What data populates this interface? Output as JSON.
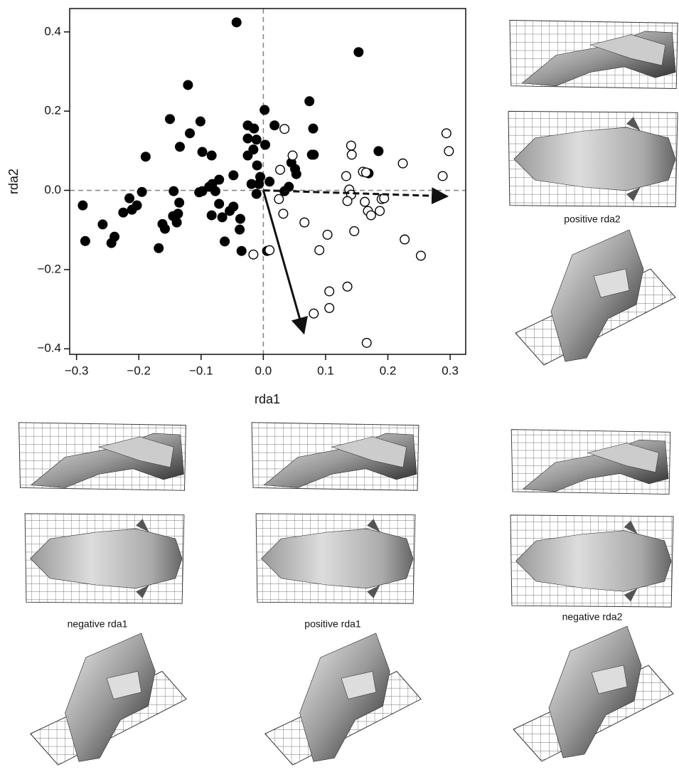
{
  "chart_data": {
    "type": "scatter",
    "xlabel": "rda1",
    "ylabel": "rda2",
    "xlim": [
      -0.311,
      0.325
    ],
    "ylim": [
      -0.414,
      0.459
    ],
    "xticks": [
      {
        "value": -0.3,
        "label": "−0.3"
      },
      {
        "value": -0.2,
        "label": "−0.2"
      },
      {
        "value": -0.1,
        "label": "−0.1"
      },
      {
        "value": 0,
        "label": "0.0"
      },
      0.1,
      0.2,
      0.3
    ],
    "yticks": [
      {
        "value": -0.4,
        "label": "−0.4"
      },
      {
        "value": -0.2,
        "label": "−0.2"
      },
      {
        "value": 0,
        "label": "0.0"
      },
      0.2,
      0.4
    ],
    "zero_lines": true,
    "series": [
      {
        "color": "#000000",
        "marker": "filled",
        "x": [
          -0.043,
          0.153,
          -0.121,
          -0.15,
          -0.101,
          0.002,
          -0.025,
          -0.015,
          0.018,
          0.074,
          0.08,
          -0.118,
          -0.134,
          -0.189,
          -0.098,
          -0.083,
          -0.025,
          -0.011,
          -0.016,
          0.003,
          -0.025,
          -0.01,
          0.078,
          0.081,
          0.185,
          -0.048,
          -0.071,
          -0.082,
          -0.087,
          -0.098,
          -0.103,
          -0.077,
          -0.019,
          -0.007,
          -0.005,
          0.01,
          0.045,
          0.051,
          0.053,
          0.034,
          0.041,
          -0.011,
          0.169,
          -0.144,
          -0.195,
          -0.215,
          -0.203,
          -0.211,
          -0.225,
          -0.29,
          -0.258,
          -0.286,
          -0.239,
          -0.244,
          -0.162,
          -0.158,
          -0.145,
          -0.137,
          -0.139,
          -0.135,
          -0.168,
          -0.083,
          -0.071,
          -0.054,
          -0.066,
          -0.048,
          -0.037,
          -0.038,
          -0.062,
          -0.035,
          0.006
        ],
        "values": [
          0.424,
          0.349,
          0.266,
          0.18,
          0.174,
          0.203,
          0.164,
          0.156,
          0.164,
          0.225,
          0.156,
          0.144,
          0.11,
          0.085,
          0.097,
          0.088,
          0.131,
          0.128,
          0.103,
          0.115,
          0.088,
          0.063,
          0.09,
          0.09,
          0.099,
          0.038,
          0.027,
          0.016,
          0.009,
          -0.002,
          -0.005,
          -0.002,
          0.016,
          0.016,
          0.034,
          0.022,
          0.07,
          0.054,
          0.041,
          -0.002,
          0.009,
          -0.009,
          0.043,
          -0.002,
          -0.004,
          -0.02,
          -0.038,
          -0.049,
          -0.056,
          -0.038,
          -0.086,
          -0.128,
          -0.117,
          -0.133,
          -0.085,
          -0.097,
          -0.065,
          -0.059,
          -0.081,
          -0.031,
          -0.146,
          -0.063,
          -0.034,
          -0.052,
          -0.068,
          -0.041,
          -0.072,
          -0.099,
          -0.129,
          -0.153,
          -0.153
        ]
      },
      {
        "color": "#000000",
        "marker": "open",
        "x": [
          0.034,
          0.047,
          0.027,
          0.025,
          0.032,
          0.066,
          0.103,
          0.09,
          0.081,
          0.106,
          0.106,
          0.135,
          0.166,
          0.01,
          -0.016,
          0.141,
          0.142,
          0.133,
          0.16,
          0.165,
          0.138,
          0.141,
          0.135,
          0.163,
          0.168,
          0.173,
          0.146,
          0.187,
          0.19,
          0.194,
          0.224,
          0.294,
          0.298,
          0.288,
          0.227,
          0.253
        ],
        "values": [
          0.155,
          0.088,
          0.052,
          -0.022,
          -0.059,
          -0.081,
          -0.112,
          -0.151,
          -0.311,
          -0.255,
          -0.297,
          -0.243,
          -0.385,
          -0.151,
          -0.162,
          0.113,
          0.09,
          0.036,
          0.047,
          0.045,
          0.002,
          -0.011,
          -0.027,
          -0.029,
          -0.052,
          -0.063,
          -0.103,
          -0.052,
          -0.022,
          -0.02,
          0.068,
          0.144,
          0.099,
          0.036,
          -0.124,
          -0.165
        ]
      }
    ],
    "arrows": [
      {
        "x": 0.065,
        "y": -0.36,
        "dashed": false
      },
      {
        "x": 0.295,
        "y": -0.015,
        "dashed": true
      }
    ]
  },
  "panels": [
    "positive rda2",
    "negative rda1",
    "positive rda1",
    "negative rda2"
  ]
}
